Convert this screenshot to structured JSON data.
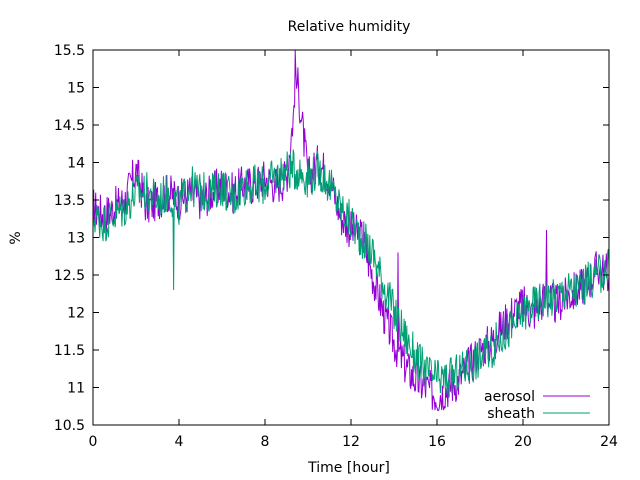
{
  "chart_data": {
    "type": "line",
    "title": "Relative humidity",
    "xlabel": "Time [hour]",
    "ylabel": "%",
    "xlim": [
      0,
      24
    ],
    "ylim": [
      10.5,
      15.5
    ],
    "x_ticks": [
      0,
      4,
      8,
      12,
      16,
      20,
      24
    ],
    "y_ticks": [
      10.5,
      11,
      11.5,
      12,
      12.5,
      13,
      13.5,
      14,
      14.5,
      15,
      15.5
    ],
    "x_tick_labels": [
      "0",
      "4",
      "8",
      "12",
      "16",
      "20",
      "24"
    ],
    "y_tick_labels": [
      "10.5",
      "11",
      "11.5",
      "12",
      "12.5",
      "13",
      "13.5",
      "14",
      "14.5",
      "15",
      "15.5"
    ],
    "grid": false,
    "legend_position": "bottom-right",
    "x": [
      0,
      0.5,
      1,
      1.5,
      2,
      2.5,
      3,
      3.5,
      4,
      4.5,
      5,
      5.5,
      6,
      6.5,
      7,
      7.5,
      8,
      8.5,
      9,
      9.5,
      10,
      10.5,
      11,
      11.5,
      12,
      12.5,
      13,
      13.5,
      14,
      14.5,
      15,
      15.5,
      16,
      16.5,
      17,
      17.5,
      18,
      18.5,
      19,
      19.5,
      20,
      20.5,
      21,
      21.5,
      22,
      22.5,
      23,
      23.5,
      24
    ],
    "series": [
      {
        "name": "aerosol",
        "color": "#9400d3",
        "values": [
          13.4,
          13.3,
          13.4,
          13.5,
          13.9,
          13.4,
          13.5,
          13.6,
          13.5,
          13.6,
          13.5,
          13.6,
          13.7,
          13.6,
          13.7,
          13.7,
          13.8,
          13.7,
          13.8,
          15.1,
          13.8,
          14.0,
          13.8,
          13.3,
          13.1,
          13.0,
          12.5,
          12.0,
          11.6,
          11.3,
          11.1,
          11.0,
          10.9,
          11.0,
          11.1,
          11.3,
          11.5,
          11.6,
          11.8,
          12.0,
          12.1,
          12.0,
          12.2,
          12.1,
          12.2,
          12.3,
          12.4,
          12.6,
          12.5
        ]
      },
      {
        "name": "sheath",
        "color": "#009e73",
        "values": [
          13.3,
          13.2,
          13.3,
          13.4,
          13.6,
          13.6,
          13.5,
          13.6,
          13.4,
          13.7,
          13.6,
          13.6,
          13.7,
          13.5,
          13.7,
          13.7,
          13.7,
          13.8,
          13.9,
          13.9,
          13.8,
          13.9,
          13.7,
          13.4,
          13.2,
          13.0,
          12.8,
          12.4,
          12.0,
          11.7,
          11.4,
          11.2,
          11.1,
          11.1,
          11.2,
          11.3,
          11.4,
          11.5,
          11.7,
          11.8,
          12.0,
          12.1,
          12.2,
          12.2,
          12.3,
          12.3,
          12.4,
          12.5,
          12.6
        ]
      }
    ],
    "spikes": [
      {
        "series": "sheath",
        "x": 3.75,
        "y": 12.3
      },
      {
        "series": "aerosol",
        "x": 9.4,
        "y": 15.5
      },
      {
        "series": "aerosol",
        "x": 14.2,
        "y": 12.8
      },
      {
        "series": "aerosol",
        "x": 21.1,
        "y": 13.1
      }
    ]
  }
}
